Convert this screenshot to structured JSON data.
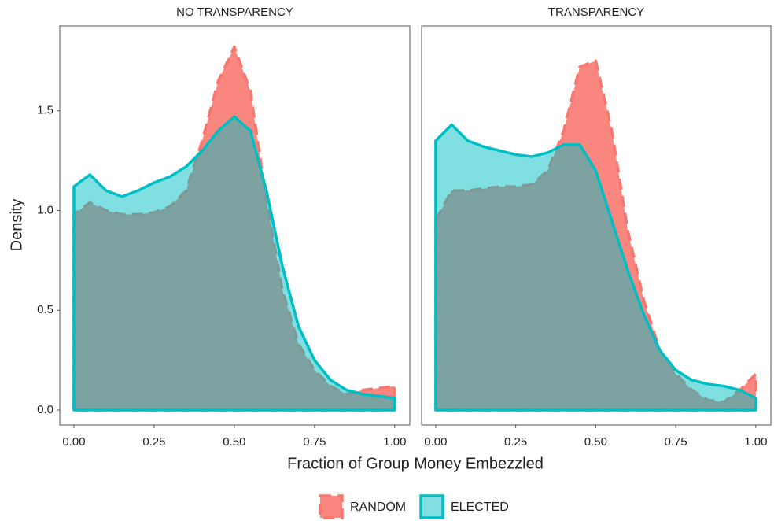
{
  "chart_data": [
    {
      "type": "area",
      "title": "NO TRANSPARENCY",
      "xlabel": "Fraction of Group Money Embezzled",
      "ylabel": "Density",
      "x": [
        0,
        0.05,
        0.1,
        0.15,
        0.2,
        0.25,
        0.3,
        0.35,
        0.4,
        0.45,
        0.5,
        0.55,
        0.6,
        0.65,
        0.7,
        0.75,
        0.8,
        0.85,
        0.9,
        0.95,
        1.0
      ],
      "series": [
        {
          "name": "RANDOM",
          "color": "#f8766d",
          "linetype": "dashed",
          "alpha": 0.88,
          "values": [
            0.98,
            1.04,
            1.0,
            0.98,
            0.98,
            0.99,
            1.02,
            1.1,
            1.35,
            1.65,
            1.82,
            1.6,
            1.05,
            0.6,
            0.33,
            0.2,
            0.12,
            0.08,
            0.1,
            0.11,
            0.12
          ]
        },
        {
          "name": "ELECTED",
          "color": "#00bfc4",
          "linetype": "solid",
          "alpha": 0.5,
          "values": [
            1.12,
            1.18,
            1.1,
            1.07,
            1.1,
            1.14,
            1.17,
            1.22,
            1.3,
            1.4,
            1.47,
            1.4,
            1.1,
            0.72,
            0.42,
            0.25,
            0.15,
            0.1,
            0.08,
            0.07,
            0.06
          ]
        }
      ],
      "xlim": [
        -0.044,
        1.047
      ],
      "ylim": [
        -0.075,
        1.925
      ],
      "xticks": [
        {
          "value": 0,
          "label": "0.00"
        },
        {
          "value": 0.25,
          "label": "0.25"
        },
        {
          "value": 0.5,
          "label": "0.50"
        },
        {
          "value": 0.75,
          "label": "0.75"
        },
        {
          "value": 1,
          "label": "1.00"
        }
      ],
      "yticks": [
        {
          "value": 0,
          "label": "0.0"
        },
        {
          "value": 0.5,
          "label": "0.5"
        },
        {
          "value": 1,
          "label": "1.0"
        },
        {
          "value": 1.5,
          "label": "1.5"
        }
      ]
    },
    {
      "type": "area",
      "title": "TRANSPARENCY",
      "x": [
        0,
        0.05,
        0.1,
        0.15,
        0.2,
        0.25,
        0.3,
        0.35,
        0.4,
        0.45,
        0.5,
        0.55,
        0.6,
        0.65,
        0.7,
        0.75,
        0.8,
        0.85,
        0.9,
        0.95,
        1.0
      ],
      "series": [
        {
          "color": "#f8766d",
          "linetype": "dashed",
          "alpha": 0.88,
          "values": [
            0.95,
            1.1,
            1.1,
            1.11,
            1.12,
            1.12,
            1.13,
            1.2,
            1.4,
            1.72,
            1.75,
            1.4,
            0.9,
            0.55,
            0.3,
            0.18,
            0.1,
            0.05,
            0.04,
            0.1,
            0.18
          ]
        },
        {
          "color": "#00bfc4",
          "linetype": "solid",
          "alpha": 0.5,
          "values": [
            1.35,
            1.43,
            1.35,
            1.32,
            1.3,
            1.28,
            1.27,
            1.29,
            1.33,
            1.33,
            1.2,
            0.95,
            0.7,
            0.48,
            0.3,
            0.2,
            0.15,
            0.13,
            0.12,
            0.1,
            0.06
          ]
        }
      ],
      "xlim": [
        -0.044,
        1.047
      ],
      "ylim": [
        -0.075,
        1.925
      ],
      "xticks": [
        {
          "value": 0,
          "label": "0.00"
        },
        {
          "value": 0.25,
          "label": "0.25"
        },
        {
          "value": 0.5,
          "label": "0.50"
        },
        {
          "value": 0.75,
          "label": "0.75"
        },
        {
          "value": 1,
          "label": "1.00"
        }
      ]
    }
  ]
}
